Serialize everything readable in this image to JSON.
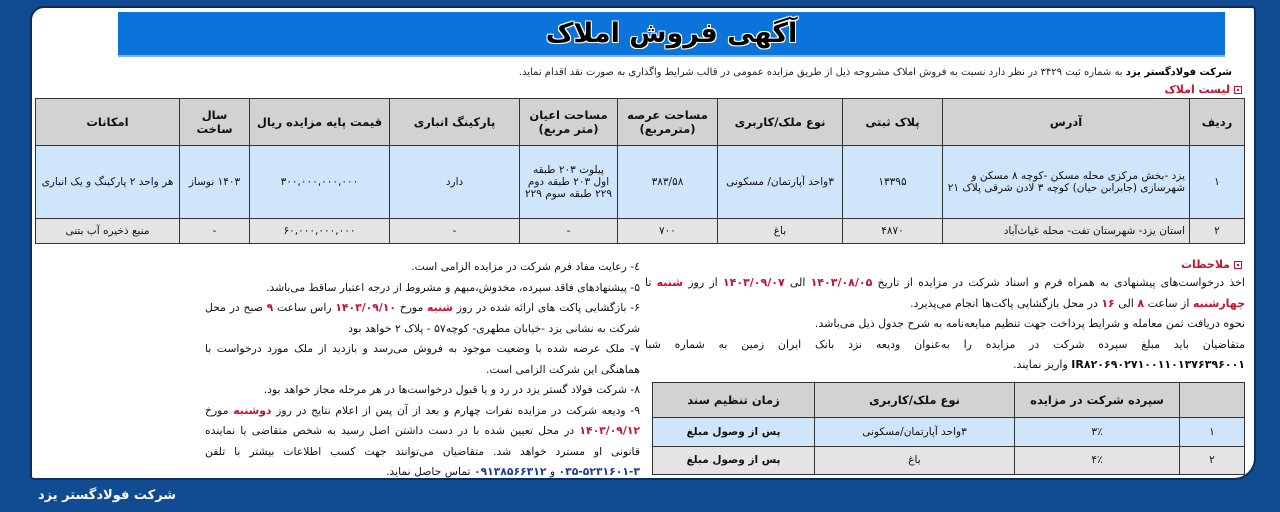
{
  "title": "آگهی فروش املاک",
  "intro": {
    "company": "شرکت فولادگستر یزد",
    "text": " به شماره ثبت ۳۴۲۹ در نظر دارد نسبت به فروش املاک مشروحه ذیل از طریق مزایده عمومی در قالب شرایط واگذاری به صورت نقد اقدام نماید."
  },
  "property_list_label": "لیست املاک",
  "properties": {
    "headers": [
      "ردیف",
      "آدرس",
      "پلاک ثبتی",
      "نوع ملک/کاربری",
      "مساحت عرصه (مترمربع)",
      "مساحت اعیان (متر مربع)",
      "پارکینگ انباری",
      "قیمت پایه مزایده ریال",
      "سال ساخت",
      "امکانات"
    ],
    "rows": [
      [
        "۱",
        "یزد -بخش مرکزی محله مسکن -کوچه ۸ مسکن و شهرسازی (جابرابن حیان) کوچه ۳ لادن شرقی پلاک ۲۱",
        "۱۳۳۹۵",
        "۳واحد آپارتمان/ مسکونی",
        "۳۸۳/۵۸",
        "پیلوت ۲۰۳ طبقه اول ۲۰۳ طبقه دوم ۲۲۹ طبقه سوم ۲۲۹",
        "دارد",
        "۳۰۰,۰۰۰,۰۰۰,۰۰۰",
        "۱۴۰۳ نوساز",
        "هر واحد ۲ پارکینگ و یک انباری"
      ],
      [
        "۲",
        "استان یزد- شهرستان تفت- محله غیاث‌آباد",
        "۴۸۷۰",
        "باغ",
        "۷۰۰",
        "-",
        "-",
        "۶۰,۰۰۰,۰۰۰,۰۰۰",
        "-",
        "منبع ذخیره آب بتنی"
      ]
    ]
  },
  "notes_label": "ملاحظات",
  "notes": {
    "p1a": "اخذ درخواست‌های پیشنهادی به همراه فرم و اسناد شرکت در مزایده از تاریخ ",
    "d1": "۱۴۰۳/۰۸/۰۵",
    "p1b": " الی ",
    "d2": "۱۴۰۳/۰۹/۰۷",
    "p1c": " از روز ",
    "day1": "شنبه",
    "p1d": " تا ",
    "day2": "چهارشنبه",
    "p1e": " از ساعت ",
    "h1": "۸",
    "p1f": " الی ",
    "h2": "۱۶",
    "p1g": " در محل بازگشایی پاکت‌ها انجام می‌پذیرد.",
    "p2": "نحوه دریافت ثمن معامله و شرایط پرداخت جهت تنظیم مبایعه‌نامه به شرح جدول ذیل می‌باشد.",
    "p3": "متقاضیان باید مبلغ سپرده شرکت در مزایده را به‌عنوان ودیعه نزد بانک ایران زمین به شماره شبا ",
    "iban": "IR۸۲۰۶۹۰۲۷۱۰۰۱۱۰۱۳۷۶۳۹۶۰۰۱",
    "p3b": " واریز نمایند."
  },
  "deposit": {
    "headers": [
      "",
      "سپرده شرکت در مزایده",
      "نوع ملک/کاربری",
      "زمان تنظیم سند"
    ],
    "rows": [
      [
        "۱",
        "۳٪",
        "۳واحد آپارتمان/مسکونی",
        "پس از وصول مبلغ"
      ],
      [
        "۲",
        "۴٪",
        "باغ",
        "پس از وصول مبلغ"
      ]
    ]
  },
  "items": {
    "i4": "٤- رعایت مفاد فرم شرکت در مزایده الزامی است.",
    "i5": "۵- پیشنهادهای فاقد سپرده، مخدوش،مبهم و مشروط از درجه اعتبار ساقط می‌باشد.",
    "i6a": "۶- بازگشایی پاکت های ارائه شده در روز ",
    "i6day": "شنبه",
    "i6b": " مورخ ",
    "i6date": "۱۴۰۳/۰۹/۱۰",
    "i6c": " راس ساعت ",
    "i6h": "۹",
    "i6d": " صبح در محل شرکت به نشانی یزد -خیابان مطهری- کوچه۵۷ - پلاک ۲ خواهد بود",
    "i7": "۷- ملک عرضه شده با وضعیت موجود به فروش می‌رسد و بازدید از ملک مورد درخواست با هماهنگی این شرکت الزامی است.",
    "i8": "۸- شرکت فولاد گستر یزد در رد و یا قبول درخواست‌ها در هر مرحله مجاز خواهد بود.",
    "i9a": "۹- ودیعه شرکت در مزایده نفرات چهارم و بعد از آن پس از اعلام نتایج در روز ",
    "i9day": "دوشنبه",
    "i9b": " مورخ ",
    "i9date": "۱۴۰۳/۰۹/۱۲",
    "i9c": " در محل تعیین شده با در دست داشتن اصل رسید به شخص متقاضی یا نماینده قانونی او مسترد خواهد شد. متقاضیان می‌توانند جهت کسب اطلاعات بیشتر با تلفن ",
    "phone1": "۳-۵۲۳۱۶۰۱-۰۳۵",
    "i9d": " و ",
    "phone2": "۰۹۱۳۸۵۶۶۳۱۲",
    "i9e": " تماس حاصل نماید."
  },
  "footer": "شرکت فولادگستر یزد",
  "colors": {
    "background": "#114b92",
    "title_bar": "#0a74da",
    "accent_red": "#c8102e",
    "row_highlight": "#cfe5fa"
  }
}
